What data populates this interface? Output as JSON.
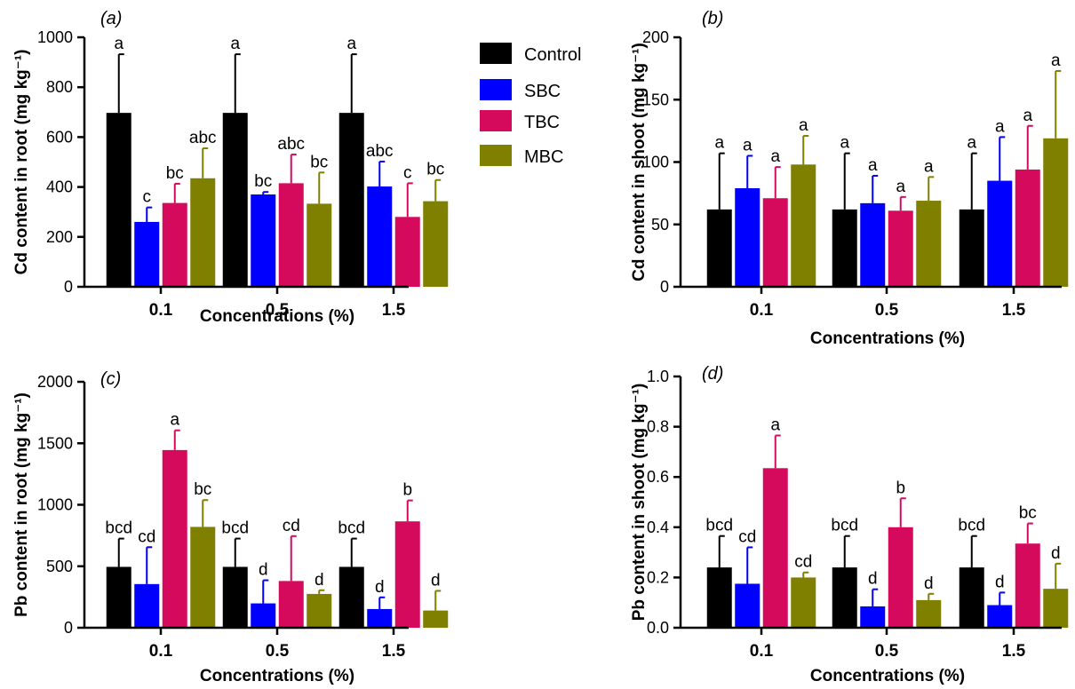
{
  "chart_data": [
    {
      "type": "bar",
      "panel_label": "(a)",
      "categories": [
        "0.1",
        "0.5",
        "1.5"
      ],
      "xlabel": "Concentrations (%)",
      "ylabel": "Cd content in root (mg kg⁻¹)",
      "ylim": [
        0,
        1000
      ],
      "yticks": [
        "0",
        "200",
        "400",
        "600",
        "800",
        "1000"
      ],
      "series": [
        {
          "name": "Control",
          "color": "#000000",
          "values": [
            697,
            697,
            697
          ],
          "errors": [
            235,
            235,
            235
          ],
          "labels": [
            "a",
            "a",
            "a"
          ]
        },
        {
          "name": "SBC",
          "color": "#0000ff",
          "values": [
            260,
            370,
            402
          ],
          "errors": [
            58,
            10,
            100
          ],
          "labels": [
            "c",
            "bc",
            "abc"
          ]
        },
        {
          "name": "TBC",
          "color": "#d60a5c",
          "values": [
            336,
            415,
            280
          ],
          "errors": [
            77,
            115,
            135
          ],
          "labels": [
            "bc",
            "abc",
            "c"
          ]
        },
        {
          "name": "MBC",
          "color": "#7f7f00",
          "values": [
            435,
            333,
            343
          ],
          "errors": [
            120,
            125,
            85
          ],
          "labels": [
            "abc",
            "bc",
            "bc"
          ]
        }
      ]
    },
    {
      "type": "bar",
      "panel_label": "(b)",
      "categories": [
        "0.1",
        "0.5",
        "1.5"
      ],
      "xlabel": "Concentrations (%)",
      "ylabel": "Cd content in shoot (mg kg⁻¹)",
      "ylim": [
        0,
        200
      ],
      "yticks": [
        "0",
        "50",
        "100",
        "150",
        "200"
      ],
      "series": [
        {
          "name": "Control",
          "color": "#000000",
          "values": [
            62,
            62,
            62
          ],
          "errors": [
            45,
            45,
            45
          ],
          "labels": [
            "a",
            "a",
            "a"
          ]
        },
        {
          "name": "SBC",
          "color": "#0000ff",
          "values": [
            79,
            67,
            85
          ],
          "errors": [
            26,
            22,
            35
          ],
          "labels": [
            "a",
            "a",
            "a"
          ]
        },
        {
          "name": "TBC",
          "color": "#d60a5c",
          "values": [
            71,
            61,
            94
          ],
          "errors": [
            25,
            11,
            35
          ],
          "labels": [
            "a",
            "a",
            "a"
          ]
        },
        {
          "name": "MBC",
          "color": "#7f7f00",
          "values": [
            98,
            69,
            119
          ],
          "errors": [
            23,
            19,
            54
          ],
          "labels": [
            "a",
            "a",
            "a"
          ]
        }
      ]
    },
    {
      "type": "bar",
      "panel_label": "(c)",
      "categories": [
        "0.1",
        "0.5",
        "1.5"
      ],
      "xlabel": "Concentrations (%)",
      "ylabel": "Pb content in root (mg kg⁻¹)",
      "ylim": [
        0,
        2000
      ],
      "yticks": [
        "0",
        "500",
        "1000",
        "1500",
        "2000"
      ],
      "series": [
        {
          "name": "Control",
          "color": "#000000",
          "values": [
            495,
            495,
            495
          ],
          "errors": [
            230,
            230,
            230
          ],
          "labels": [
            "bcd",
            "bcd",
            "bcd"
          ]
        },
        {
          "name": "SBC",
          "color": "#0000ff",
          "values": [
            355,
            198,
            152
          ],
          "errors": [
            300,
            188,
            95
          ],
          "labels": [
            "cd",
            "d",
            "d"
          ]
        },
        {
          "name": "TBC",
          "color": "#d60a5c",
          "values": [
            1445,
            380,
            865
          ],
          "errors": [
            160,
            365,
            170
          ],
          "labels": [
            "a",
            "cd",
            "b"
          ]
        },
        {
          "name": "MBC",
          "color": "#7f7f00",
          "values": [
            820,
            275,
            140
          ],
          "errors": [
            218,
            30,
            160
          ],
          "labels": [
            "bc",
            "d",
            "d"
          ]
        }
      ]
    },
    {
      "type": "bar",
      "panel_label": "(d)",
      "categories": [
        "0.1",
        "0.5",
        "1.5"
      ],
      "xlabel": "Concentrations (%)",
      "ylabel": "Pb content in shoot (mg kg⁻¹)",
      "ylim": [
        0,
        1.0
      ],
      "yticks": [
        "0.0",
        "0.2",
        "0.4",
        "0.6",
        "0.8",
        "1.0"
      ],
      "series": [
        {
          "name": "Control",
          "color": "#000000",
          "values": [
            0.24,
            0.24,
            0.24
          ],
          "errors": [
            0.125,
            0.125,
            0.125
          ],
          "labels": [
            "bcd",
            "bcd",
            "bcd"
          ]
        },
        {
          "name": "SBC",
          "color": "#0000ff",
          "values": [
            0.175,
            0.085,
            0.09
          ],
          "errors": [
            0.145,
            0.068,
            0.05
          ],
          "labels": [
            "cd",
            "d",
            "d"
          ]
        },
        {
          "name": "TBC",
          "color": "#d60a5c",
          "values": [
            0.635,
            0.4,
            0.335
          ],
          "errors": [
            0.13,
            0.115,
            0.08
          ],
          "labels": [
            "a",
            "b",
            "bc"
          ]
        },
        {
          "name": "MBC",
          "color": "#7f7f00",
          "values": [
            0.2,
            0.11,
            0.155
          ],
          "errors": [
            0.02,
            0.025,
            0.1
          ],
          "labels": [
            "cd",
            "d",
            "d"
          ]
        }
      ]
    }
  ],
  "legend": {
    "placement": "right of panel (a)",
    "entries": [
      {
        "name": "Control",
        "color": "#000000"
      },
      {
        "name": "SBC",
        "color": "#0000ff"
      },
      {
        "name": "TBC",
        "color": "#d60a5c"
      },
      {
        "name": "MBC",
        "color": "#7f7f00"
      }
    ]
  }
}
